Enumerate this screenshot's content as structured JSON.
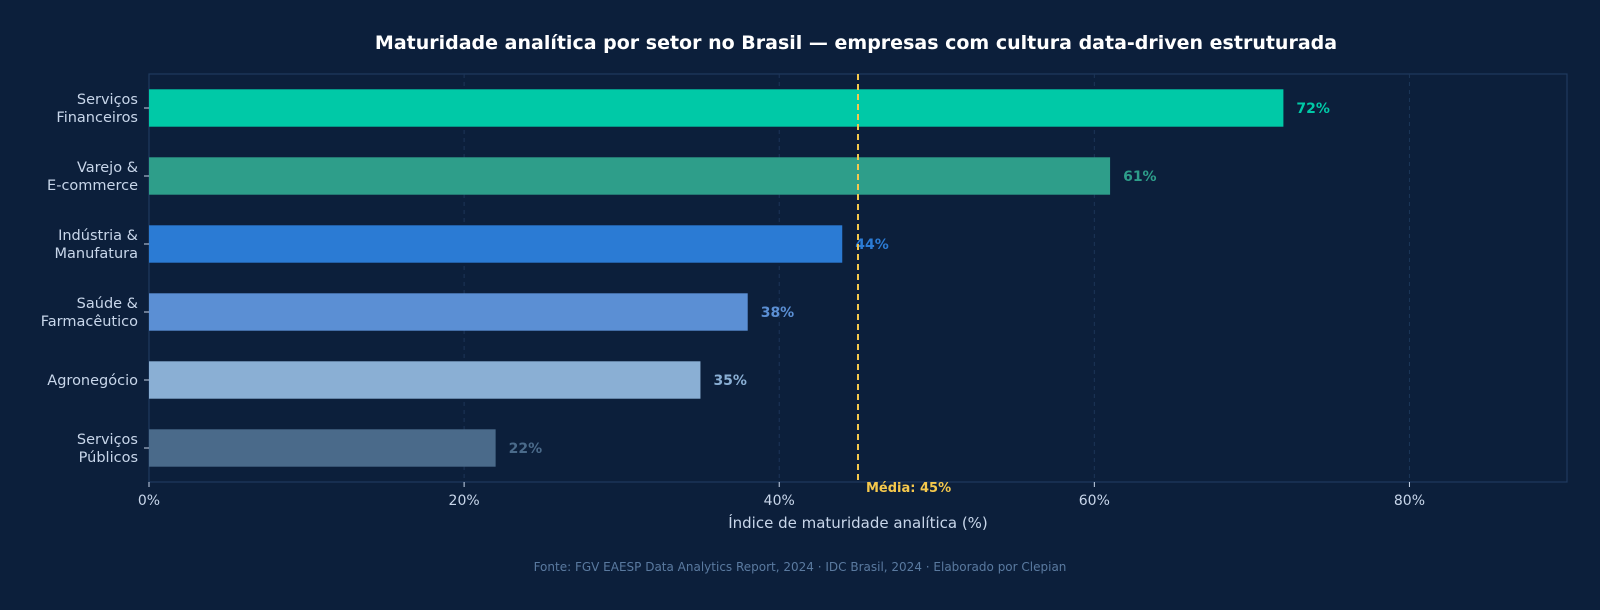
{
  "chart_data": {
    "type": "bar",
    "orientation": "horizontal",
    "title": "Maturidade analítica por setor no Brasil — empresas com cultura data-driven estruturada",
    "xlabel": "Índice de maturidade analítica (%)",
    "ylabel": "",
    "xlim": [
      0,
      90
    ],
    "xticks": [
      0,
      20,
      40,
      60,
      80
    ],
    "xtick_labels": [
      "0%",
      "20%",
      "40%",
      "60%",
      "80%"
    ],
    "grid": true,
    "categories": [
      "Serviços\nFinanceiros",
      "Varejo &\nE-commerce",
      "Indústria &\nManufatura",
      "Saúde &\nFarmacêutico",
      "Agronegócio",
      "Serviços\nPúblicos"
    ],
    "values": [
      72,
      61,
      44,
      38,
      35,
      22
    ],
    "data_labels": [
      "72%",
      "61%",
      "44%",
      "38%",
      "35%",
      "22%"
    ],
    "colors": [
      "#00c9a7",
      "#2e9e8a",
      "#2b7bd4",
      "#5b8fd4",
      "#8aafd4",
      "#4a6a8a"
    ],
    "reference_line": {
      "value": 45,
      "label": "Média: 45%",
      "color": "#f5c84c",
      "style": "dashed"
    },
    "source": "Fonte: FGV EAESP Data Analytics Report, 2024 · IDC Brasil, 2024 · Elaborado por Clepian"
  }
}
